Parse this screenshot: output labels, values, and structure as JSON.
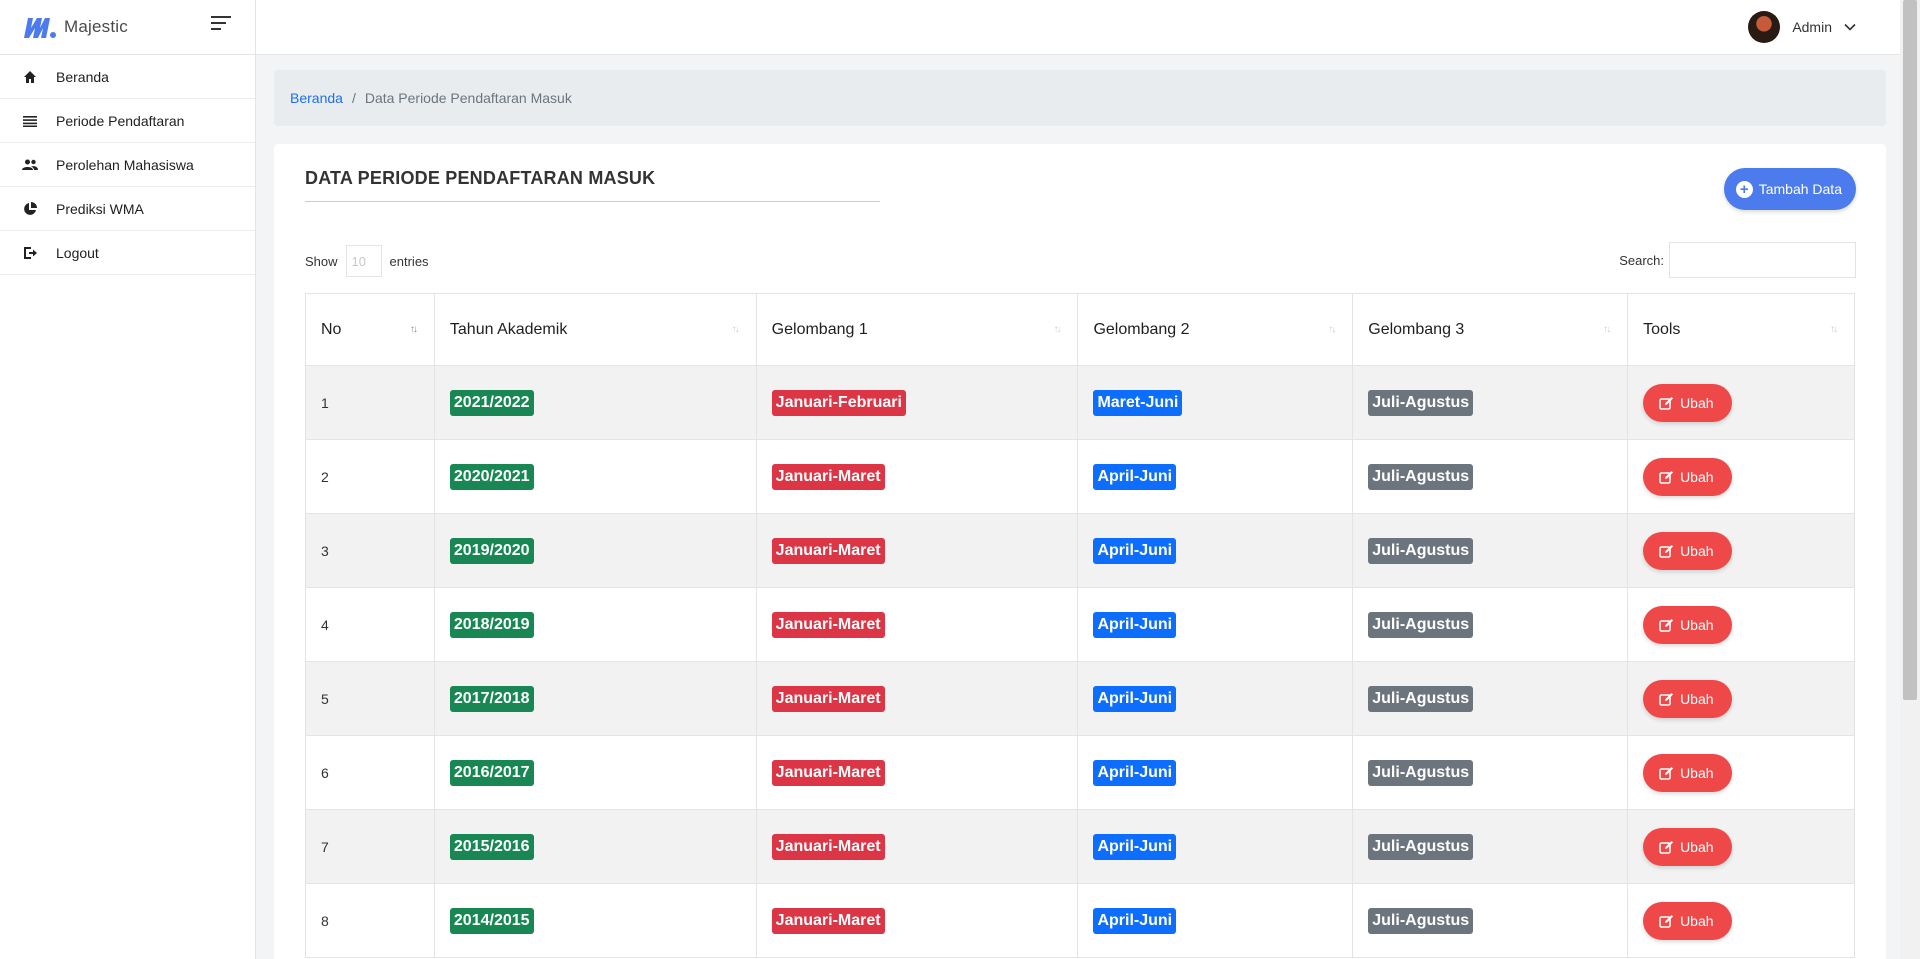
{
  "brand": {
    "name": "Majestic"
  },
  "sidebar": {
    "items": [
      {
        "label": "Beranda",
        "icon": "home-icon"
      },
      {
        "label": "Periode Pendaftaran",
        "icon": "list-icon"
      },
      {
        "label": "Perolehan Mahasiswa",
        "icon": "users-icon"
      },
      {
        "label": "Prediksi WMA",
        "icon": "pie-chart-icon"
      },
      {
        "label": "Logout",
        "icon": "logout-icon"
      }
    ]
  },
  "topbar": {
    "user_name": "Admin"
  },
  "breadcrumb": {
    "home": "Beranda",
    "separator": "/",
    "current": "Data Periode Pendaftaran Masuk"
  },
  "card": {
    "title": "DATA PERIODE PENDAFTARAN MASUK",
    "add_button": "Tambah Data"
  },
  "table_controls": {
    "show_label": "Show",
    "entries_value": "10",
    "entries_label": "entries",
    "search_label": "Search:",
    "search_value": ""
  },
  "table": {
    "headers": [
      "No",
      "Tahun Akademik",
      "Gelombang 1",
      "Gelombang 2",
      "Gelombang 3",
      "Tools"
    ],
    "action_label": "Ubah",
    "rows": [
      {
        "no": "1",
        "tahun": "2021/2022",
        "g1": "Januari-Februari",
        "g2": "Maret-Juni",
        "g3": "Juli-Agustus"
      },
      {
        "no": "2",
        "tahun": "2020/2021",
        "g1": "Januari-Maret",
        "g2": "April-Juni",
        "g3": "Juli-Agustus"
      },
      {
        "no": "3",
        "tahun": "2019/2020",
        "g1": "Januari-Maret",
        "g2": "April-Juni",
        "g3": "Juli-Agustus"
      },
      {
        "no": "4",
        "tahun": "2018/2019",
        "g1": "Januari-Maret",
        "g2": "April-Juni",
        "g3": "Juli-Agustus"
      },
      {
        "no": "5",
        "tahun": "2017/2018",
        "g1": "Januari-Maret",
        "g2": "April-Juni",
        "g3": "Juli-Agustus"
      },
      {
        "no": "6",
        "tahun": "2016/2017",
        "g1": "Januari-Maret",
        "g2": "April-Juni",
        "g3": "Juli-Agustus"
      },
      {
        "no": "7",
        "tahun": "2015/2016",
        "g1": "Januari-Maret",
        "g2": "April-Juni",
        "g3": "Juli-Agustus"
      },
      {
        "no": "8",
        "tahun": "2014/2015",
        "g1": "Januari-Maret",
        "g2": "April-Juni",
        "g3": "Juli-Agustus"
      }
    ]
  },
  "colors": {
    "accent": "#4b7bec",
    "badge_tahun": "#198754",
    "badge_g1": "#dc3545",
    "badge_g2": "#0d6efd",
    "badge_g3": "#6c757d",
    "ubah_button": "#ef4848",
    "link": "#1e6ff1"
  }
}
